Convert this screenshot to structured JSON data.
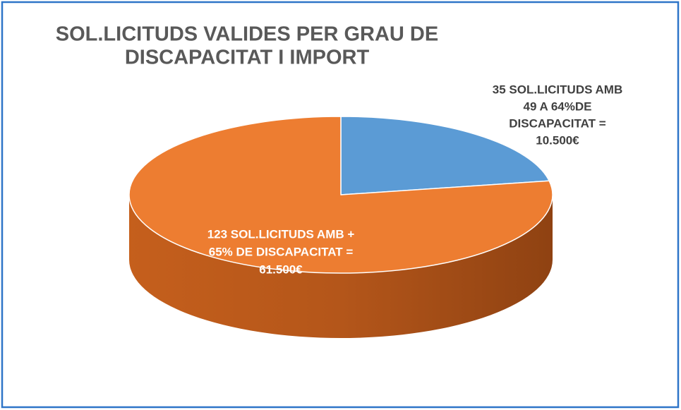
{
  "chart_data": {
    "type": "pie",
    "title": [
      "SOL.LICITUDS VALIDES PER GRAU DE",
      "DISCAPACITAT I IMPORT"
    ],
    "values": [
      35,
      123
    ],
    "value_labels": [
      [
        "35 SOL.LICITUDS AMB",
        "49 A 64%DE",
        "DISCAPACITAT =",
        "10.500€"
      ],
      [
        "123 SOL.LICITUDS AMB +",
        "65% DE DISCAPACITAT =",
        "61.500€"
      ]
    ],
    "colors": [
      "#5b9bd5",
      "#ed7d31"
    ]
  }
}
